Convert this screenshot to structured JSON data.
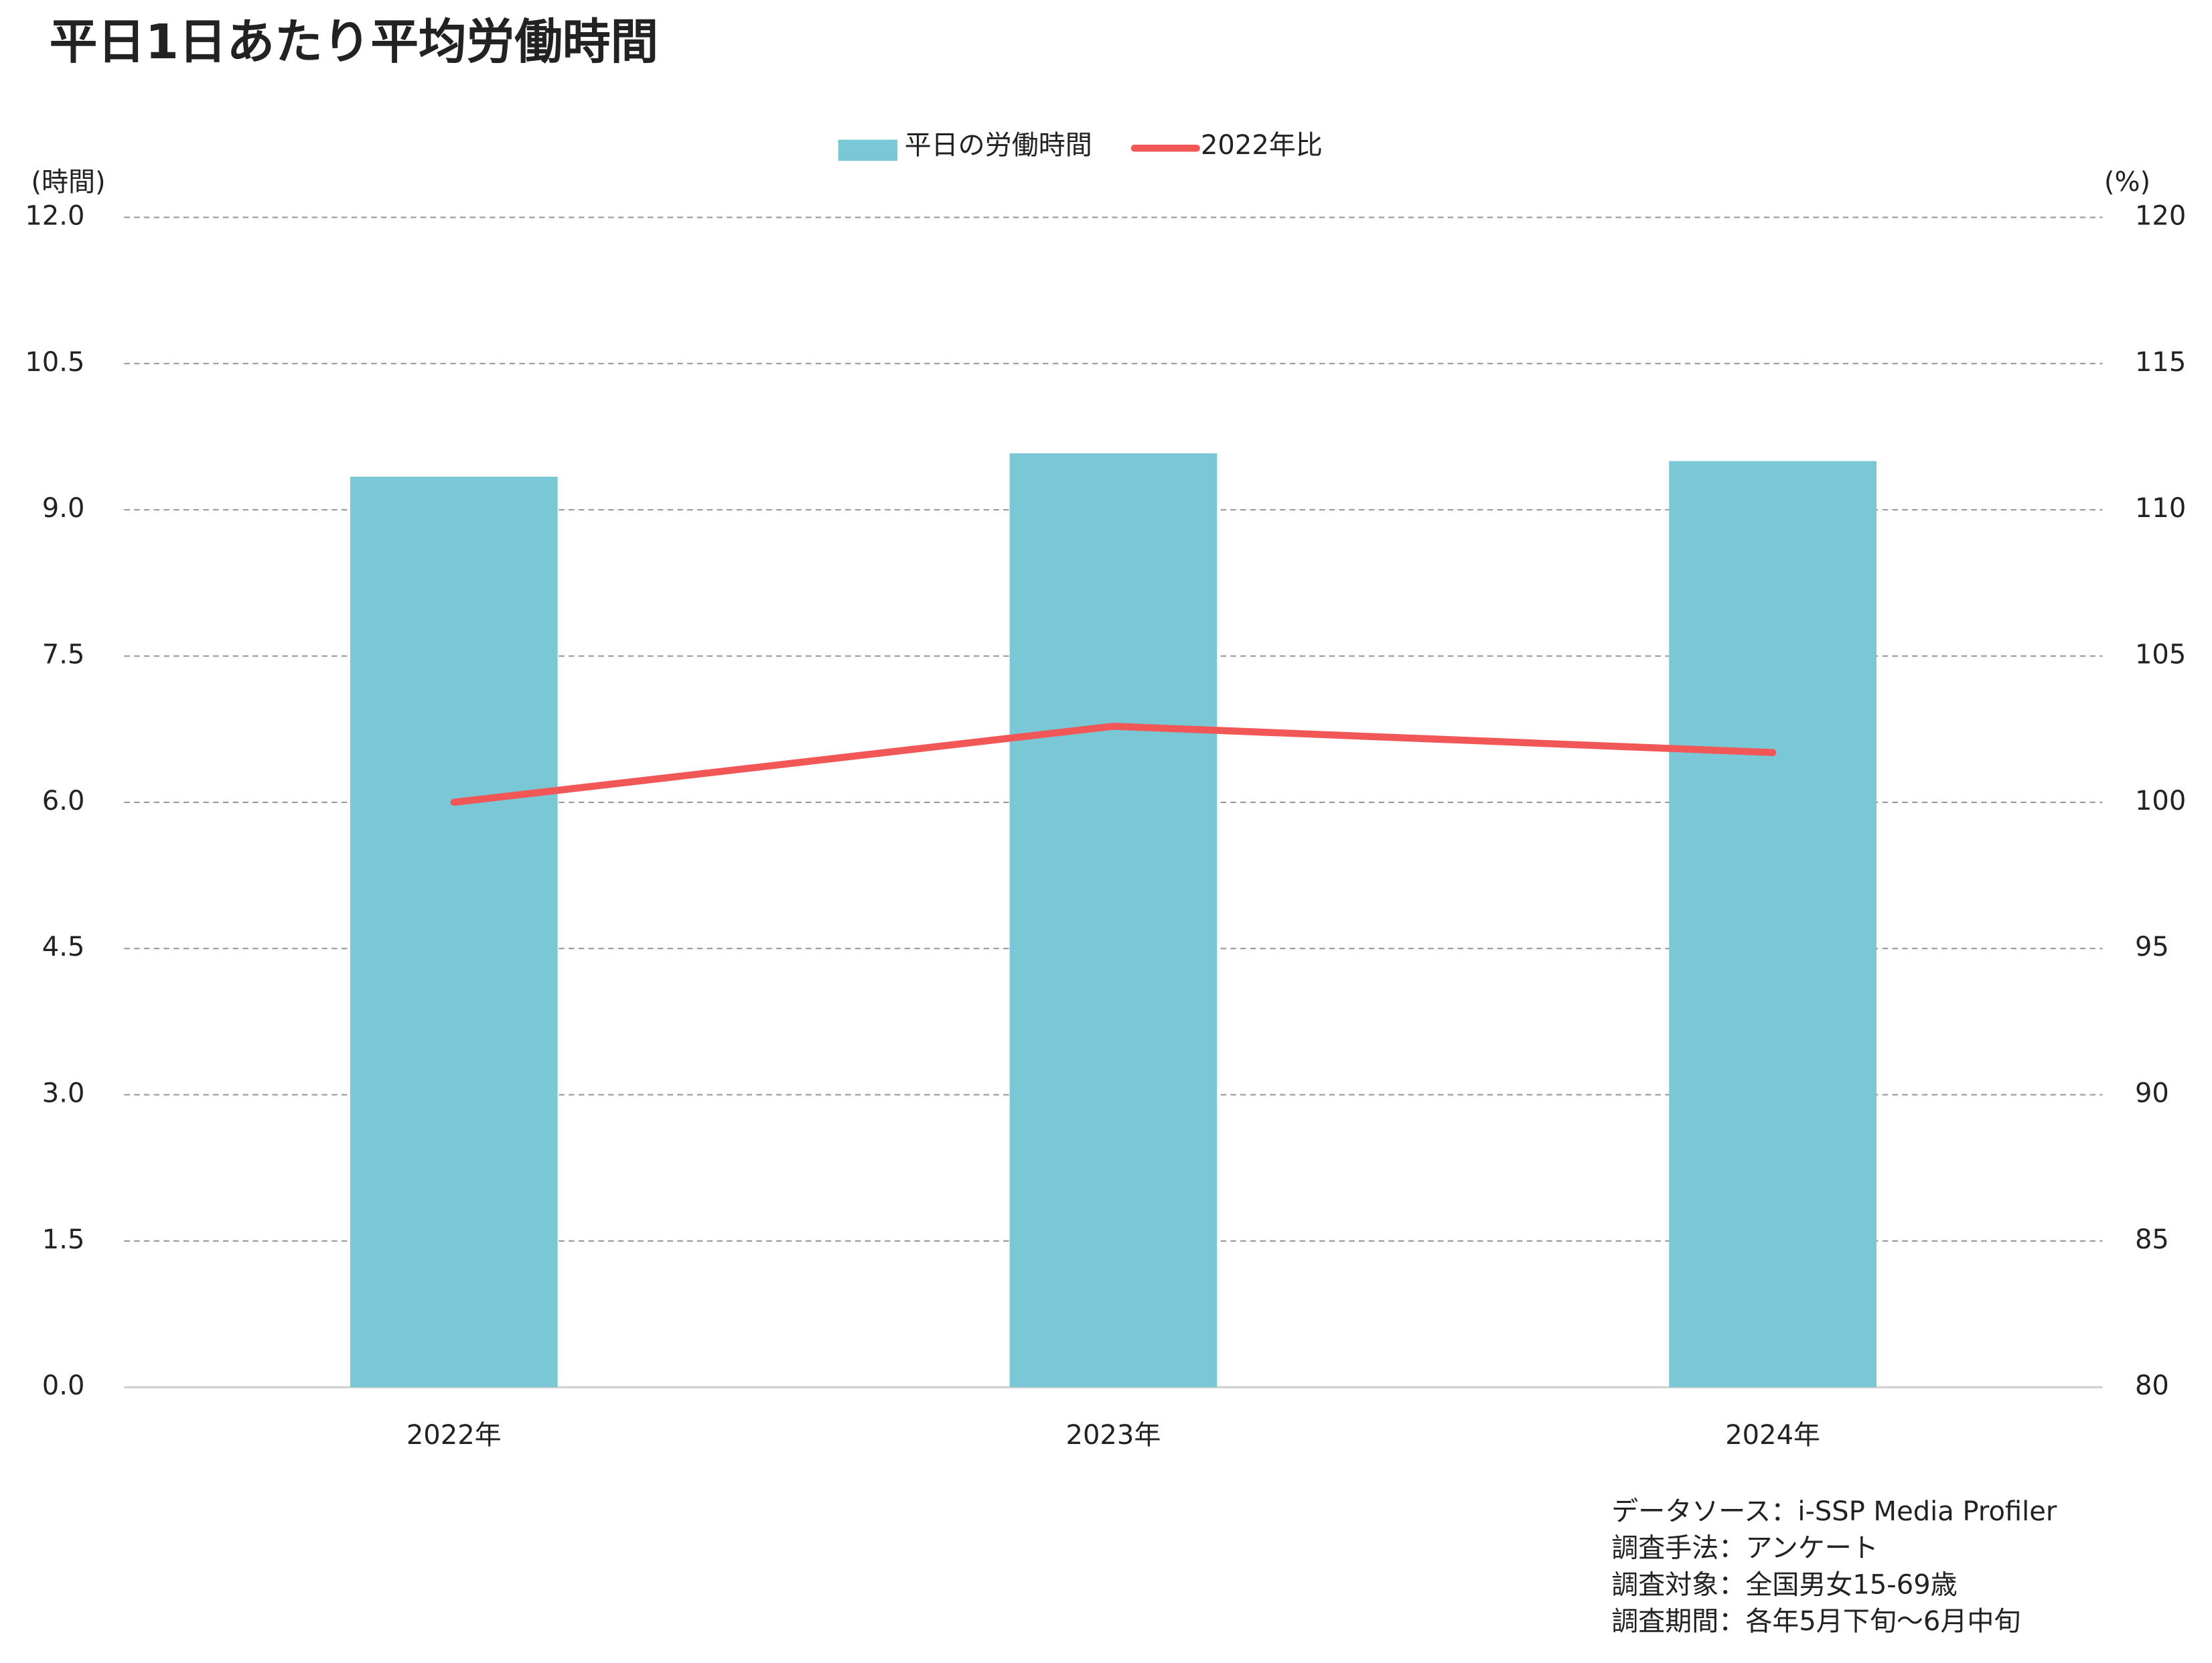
{
  "chart_data": {
    "type": "bar",
    "title": "平日1日あたり平均労働時間",
    "categories": [
      "2022年",
      "2023年",
      "2024年"
    ],
    "series": [
      {
        "name": "平日の労働時間",
        "type": "bar",
        "color": "#7ac8d6",
        "values": [
          9.34,
          9.58,
          9.5
        ]
      },
      {
        "name": "2022年比",
        "type": "line",
        "axis": "y2",
        "color": "#f25757",
        "values": [
          100,
          102.6,
          101.7
        ]
      }
    ],
    "ylim": [
      0,
      12
    ],
    "yticks": [
      {
        "value": 0,
        "label": "0.0"
      },
      {
        "value": 1.5,
        "label": "1.5"
      },
      {
        "value": 3,
        "label": "3.0"
      },
      {
        "value": 4.5,
        "label": "4.5"
      },
      {
        "value": 6,
        "label": "6.0"
      },
      {
        "value": 7.5,
        "label": "7.5"
      },
      {
        "value": 9,
        "label": "9.0"
      },
      {
        "value": 10.5,
        "label": "10.5"
      },
      {
        "value": 12,
        "label": "12.0"
      }
    ],
    "y2lim": [
      80,
      120
    ],
    "y2ticks": [
      80,
      85,
      90,
      95,
      100,
      105,
      110,
      115,
      120
    ],
    "y_label": "(時間)",
    "y2_label": "(%)",
    "grid": true,
    "legend": "top",
    "notes": [
      "データソース：i-SSP Media Profiler",
      "調査手法：アンケート",
      "調査対象：全国男女15-69歳",
      "調査期間：各年5月下旬～6月中旬"
    ]
  }
}
